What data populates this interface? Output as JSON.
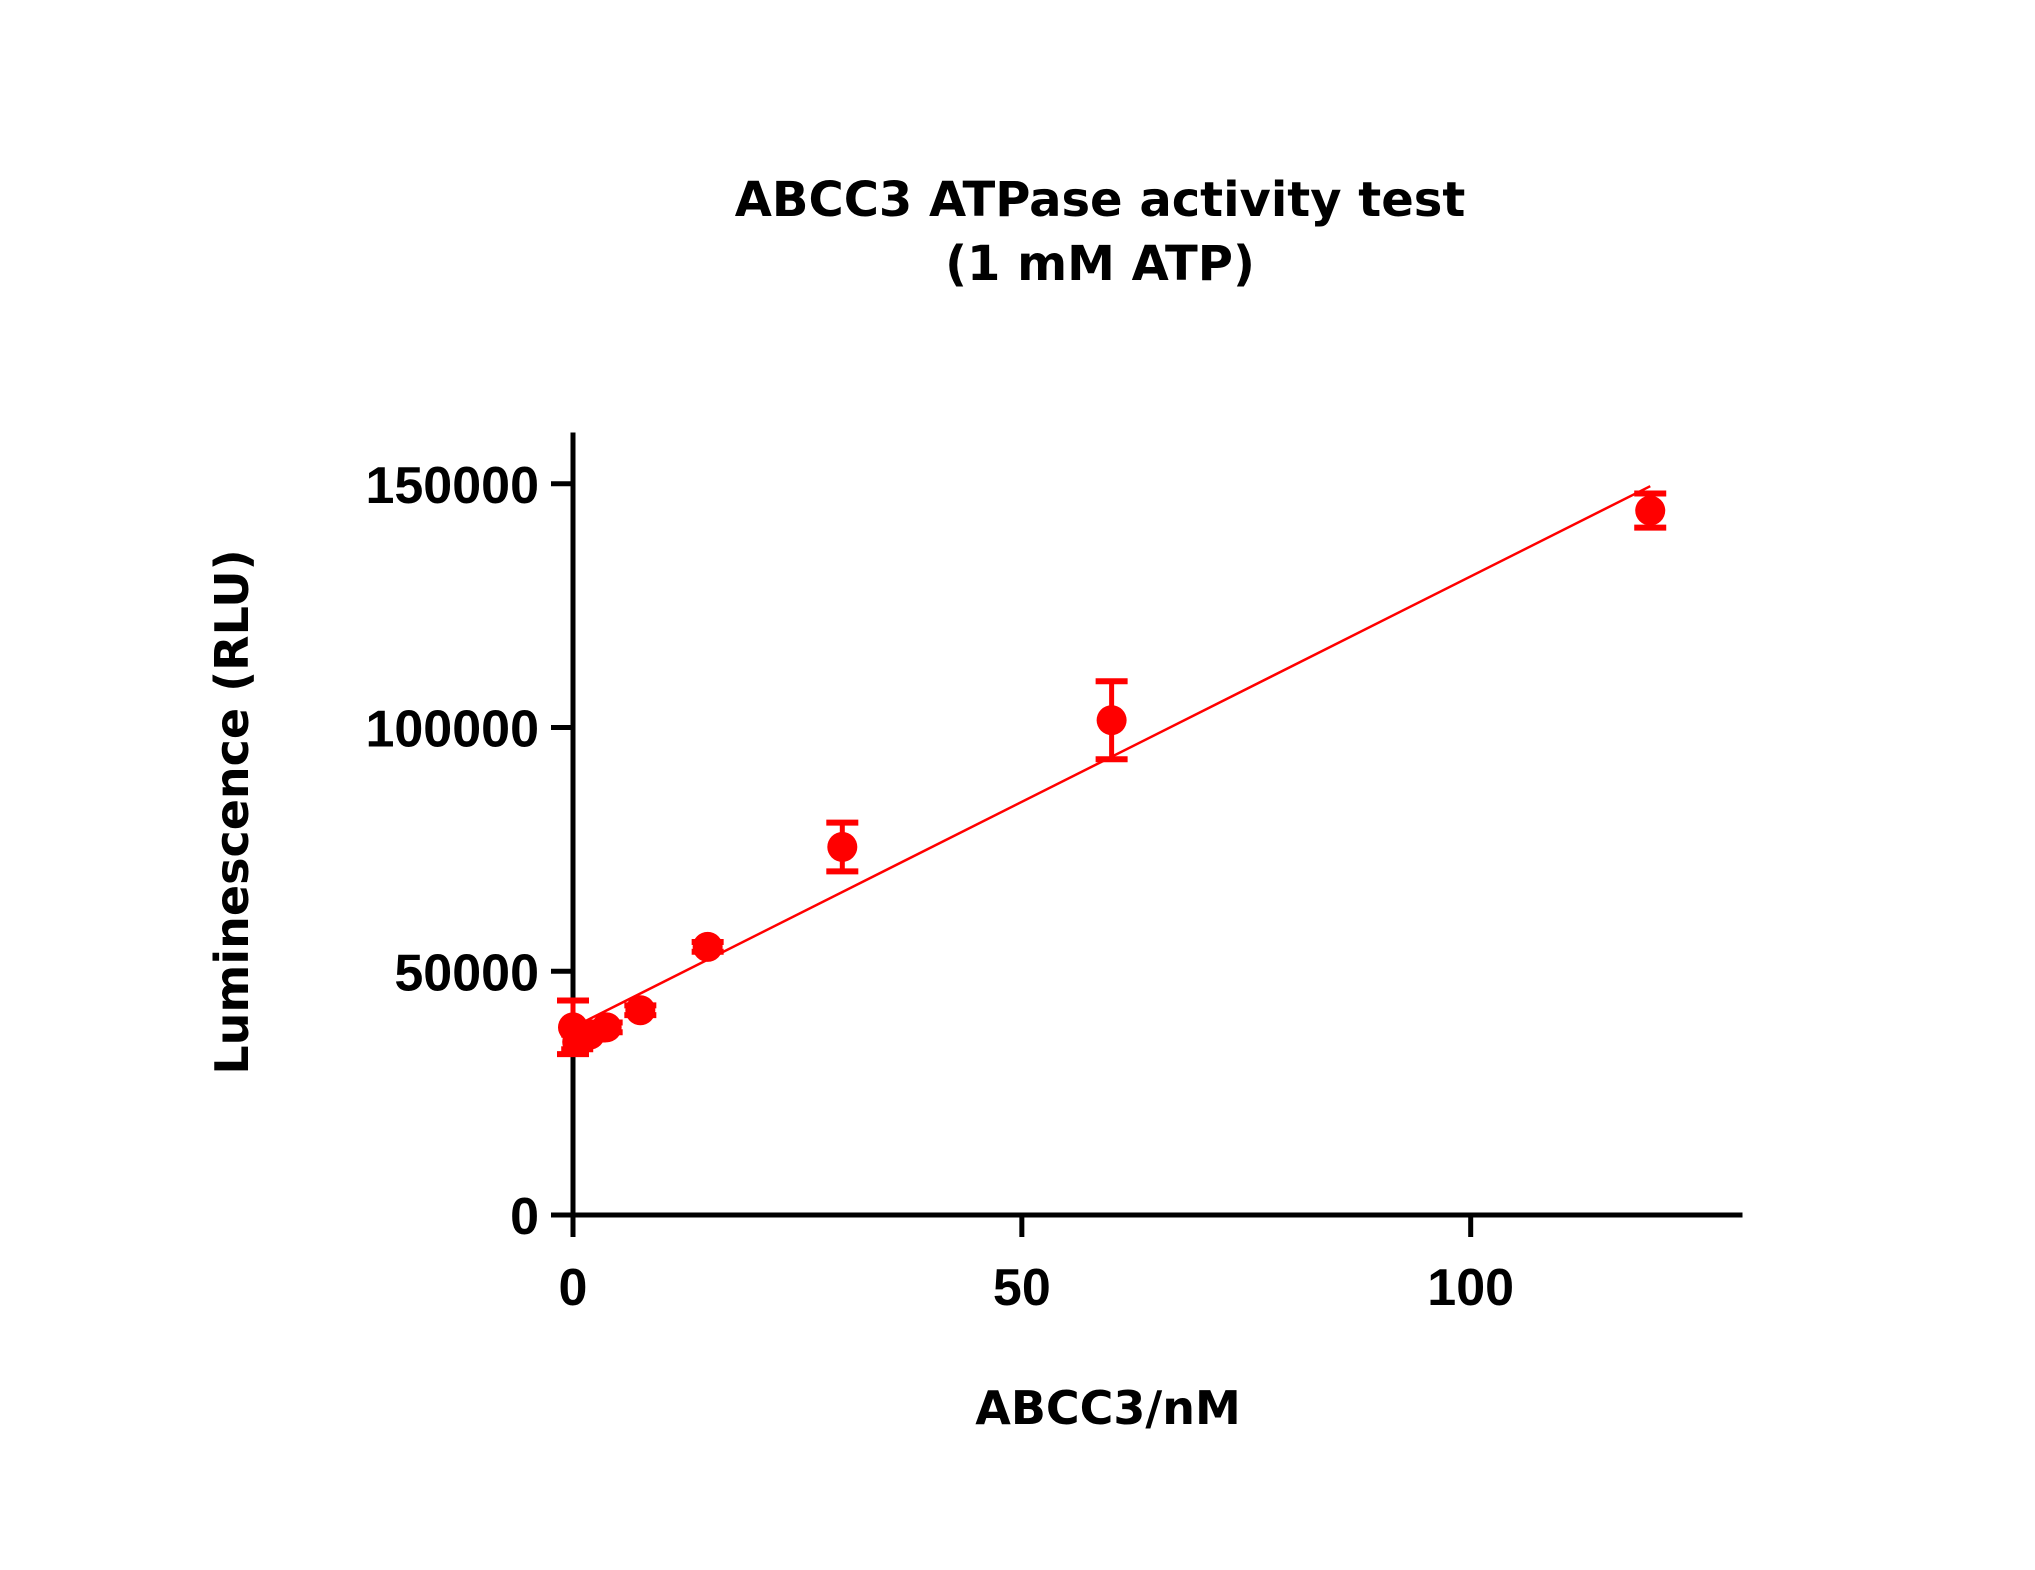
{
  "chart_data": {
    "type": "scatter",
    "title": "ABCC3 ATPase activity test",
    "subtitle": "(1 mM ATP)",
    "xlabel": "ABCC3/nM",
    "ylabel": "Luminescence (RLU)",
    "xlim": [
      0,
      130
    ],
    "ylim": [
      0,
      160000
    ],
    "x_ticks": [
      {
        "value": 0,
        "label": "0"
      },
      {
        "value": 50,
        "label": "50"
      },
      {
        "value": 100,
        "label": "100"
      }
    ],
    "y_ticks": [
      {
        "value": 0,
        "label": "0"
      },
      {
        "value": 50000,
        "label": "50000"
      },
      {
        "value": 100000,
        "label": "100000"
      },
      {
        "value": 150000,
        "label": "150000"
      }
    ],
    "grid": false,
    "series": [
      {
        "color": "#ff0000",
        "points": [
          {
            "x": 0,
            "y": 38500,
            "err": 5500
          },
          {
            "x": 0.47,
            "y": 35500,
            "err": 1500
          },
          {
            "x": 0.94,
            "y": 36500,
            "err": 1000
          },
          {
            "x": 1.875,
            "y": 37000,
            "err": 1000
          },
          {
            "x": 3.75,
            "y": 38500,
            "err": 1000
          },
          {
            "x": 7.5,
            "y": 42000,
            "err": 1000
          },
          {
            "x": 15,
            "y": 55000,
            "err": 1000
          },
          {
            "x": 30,
            "y": 75500,
            "err": 5000
          },
          {
            "x": 60,
            "y": 101500,
            "err": 8000
          },
          {
            "x": 120,
            "y": 144500,
            "err": 3500
          }
        ],
        "fit": {
          "type": "linear",
          "slope": 925,
          "intercept": 38500,
          "x_range": [
            0,
            120
          ]
        }
      }
    ]
  }
}
